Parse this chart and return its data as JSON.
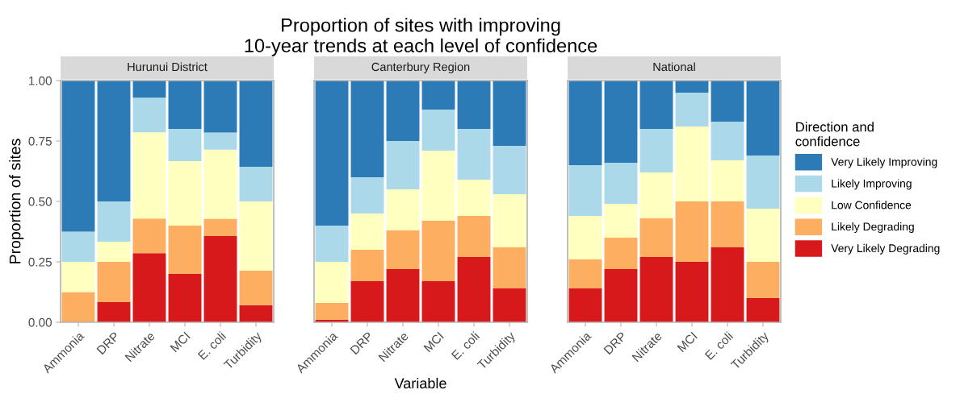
{
  "chart_data": [
    {
      "type": "bar",
      "title": "Hurunui District",
      "annotations": [
        "Proportion of sites with improving\n10-year trends at each level of confidence"
      ],
      "ylabel": "Proportion of sites",
      "stacked": true,
      "categories": [
        "Ammonia",
        "DRP",
        "Nitrate",
        "MCI",
        "E. coli",
        "Turbidity"
      ],
      "ylim": [
        0,
        1
      ],
      "yticks": [
        {
          "value": 0,
          "label": "0.00"
        },
        {
          "value": 0.25,
          "label": "0.25"
        },
        {
          "value": 0.5,
          "label": "0.50"
        },
        {
          "value": 0.75,
          "label": "0.75"
        },
        {
          "value": 1,
          "label": "1.00"
        }
      ],
      "grid": false,
      "series": [
        {
          "color": "#d7191c",
          "values": [
            0,
            0.083,
            0.286,
            0.2,
            0.357,
            0.071
          ]
        },
        {
          "color": "#fdae61",
          "values": [
            0.125,
            0.167,
            0.143,
            0.2,
            0.071,
            0.143
          ]
        },
        {
          "color": "#ffffbf",
          "values": [
            0.125,
            0.083,
            0.357,
            0.267,
            0.286,
            0.286
          ]
        },
        {
          "color": "#abd9e9",
          "values": [
            0.125,
            0.167,
            0.143,
            0.133,
            0.071,
            0.143
          ]
        },
        {
          "color": "#2c7bb6",
          "values": [
            0.625,
            0.5,
            0.071,
            0.2,
            0.214,
            0.357
          ]
        }
      ]
    },
    {
      "type": "bar",
      "title": "Canterbury Region",
      "xlabel": "Variable",
      "stacked": true,
      "categories": [
        "Ammonia",
        "DRP",
        "Nitrate",
        "MCI",
        "E. coli",
        "Turbidity"
      ],
      "ylim": [
        0,
        1
      ],
      "tick_labels": "x",
      "grid": false,
      "series": [
        {
          "color": "#d7191c",
          "values": [
            0.01,
            0.17,
            0.22,
            0.17,
            0.27,
            0.14
          ]
        },
        {
          "color": "#fdae61",
          "values": [
            0.07,
            0.13,
            0.16,
            0.25,
            0.17,
            0.17
          ]
        },
        {
          "color": "#ffffbf",
          "values": [
            0.17,
            0.15,
            0.17,
            0.29,
            0.15,
            0.22
          ]
        },
        {
          "color": "#abd9e9",
          "values": [
            0.15,
            0.15,
            0.2,
            0.17,
            0.21,
            0.2
          ]
        },
        {
          "color": "#2c7bb6",
          "values": [
            0.6,
            0.4,
            0.25,
            0.12,
            0.2,
            0.27
          ]
        }
      ]
    },
    {
      "type": "bar",
      "title": "National",
      "legend_title": "Direction and\nconfidence",
      "stacked": true,
      "categories": [
        "Ammonia",
        "DRP",
        "Nitrate",
        "MCI",
        "E. coli",
        "Turbidity"
      ],
      "ylim": [
        0,
        1
      ],
      "tick_labels": "x",
      "grid": false,
      "legend": "right",
      "series": [
        {
          "name": "Very Likely Degrading",
          "color": "#d7191c",
          "values": [
            0.14,
            0.22,
            0.27,
            0.25,
            0.31,
            0.1
          ]
        },
        {
          "name": "Likely Degrading",
          "color": "#fdae61",
          "values": [
            0.12,
            0.13,
            0.16,
            0.25,
            0.19,
            0.15
          ]
        },
        {
          "name": "Low Confidence",
          "color": "#ffffbf",
          "values": [
            0.18,
            0.14,
            0.19,
            0.31,
            0.17,
            0.22
          ]
        },
        {
          "name": "Likely Improving",
          "color": "#abd9e9",
          "values": [
            0.21,
            0.17,
            0.18,
            0.14,
            0.16,
            0.22
          ]
        },
        {
          "name": "Very Likely Improving",
          "color": "#2c7bb6",
          "values": [
            0.35,
            0.34,
            0.2,
            0.05,
            0.17,
            0.31
          ]
        }
      ]
    }
  ]
}
